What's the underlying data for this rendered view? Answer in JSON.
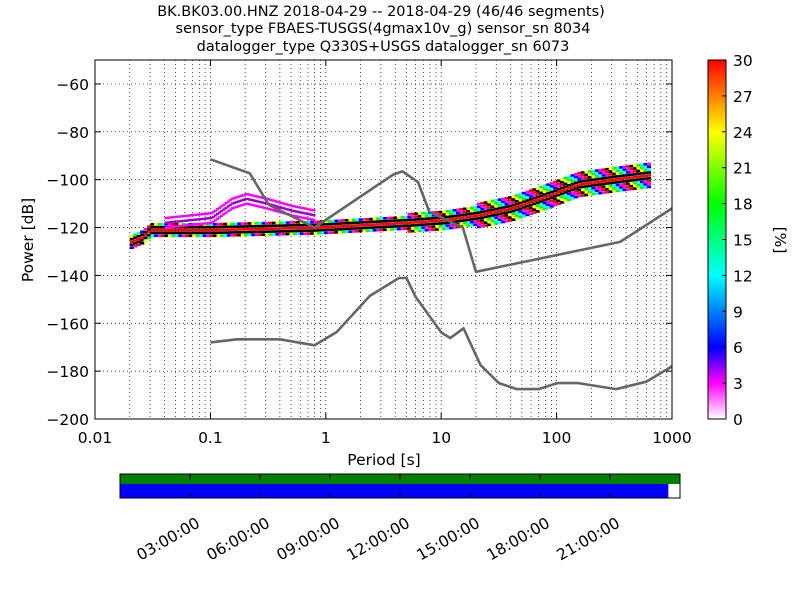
{
  "title_lines": [
    "BK.BK03.00.HNZ   2018-04-29 -- 2018-04-29  (46/46 segments)",
    "sensor_type FBAES-TUSGS(4gmax10v_g) sensor_sn 8034",
    "datalogger_type Q330S+USGS datalogger_sn 6073"
  ],
  "chart_data": {
    "type": "heatmap",
    "title": "BK.BK03.00.HNZ   2018-04-29 -- 2018-04-29  (46/46 segments)",
    "xlabel": "Period [s]",
    "ylabel": "Power [dB]",
    "xscale": "log",
    "xlim": [
      0.01,
      1000
    ],
    "ylim": [
      -200,
      -50
    ],
    "xticks": [
      0.01,
      0.1,
      1,
      10,
      100,
      1000
    ],
    "xtick_labels": [
      "0.01",
      "0.1",
      "1",
      "10",
      "100",
      "1000"
    ],
    "yticks": [
      -60,
      -80,
      -100,
      -120,
      -140,
      -160,
      -180,
      -200
    ],
    "ytick_labels": [
      "−60",
      "−80",
      "−100",
      "−120",
      "−140",
      "−160",
      "−180",
      "−200"
    ],
    "grid": true,
    "colorbar": {
      "label": "[%]",
      "range": [
        0,
        30
      ],
      "ticks": [
        0,
        3,
        6,
        9,
        12,
        15,
        18,
        21,
        24,
        27,
        30
      ],
      "tick_labels": [
        "0",
        "3",
        "6",
        "9",
        "12",
        "15",
        "18",
        "21",
        "24",
        "27",
        "30"
      ],
      "colors": [
        "#ffffff",
        "#ff00ff",
        "#0000ff",
        "#00ffff",
        "#00ff00",
        "#ffff00",
        "#ff0000"
      ]
    },
    "noise_models": [
      {
        "name": "NHNM",
        "color": "#666666",
        "points": [
          [
            0.1,
            -91.5
          ],
          [
            0.22,
            -97.4
          ],
          [
            0.32,
            -110.5
          ],
          [
            0.8,
            -120
          ],
          [
            3.8,
            -98
          ],
          [
            4.6,
            -96.5
          ],
          [
            6.3,
            -101
          ],
          [
            7.9,
            -113.5
          ],
          [
            15.4,
            -120
          ],
          [
            20,
            -138.5
          ],
          [
            354.8,
            -126
          ],
          [
            1000,
            -112
          ]
        ]
      },
      {
        "name": "NLNM",
        "color": "#666666",
        "points": [
          [
            0.1,
            -168
          ],
          [
            0.17,
            -166.7
          ],
          [
            0.4,
            -166.7
          ],
          [
            0.8,
            -169.2
          ],
          [
            1.24,
            -163.7
          ],
          [
            2.4,
            -148.6
          ],
          [
            4.3,
            -141.1
          ],
          [
            5,
            -141.1
          ],
          [
            6,
            -149
          ],
          [
            10,
            -163.8
          ],
          [
            12,
            -166.2
          ],
          [
            15.6,
            -162.1
          ],
          [
            21.9,
            -177.5
          ],
          [
            31.6,
            -185
          ],
          [
            45,
            -187.5
          ],
          [
            70,
            -187.5
          ],
          [
            101,
            -185
          ],
          [
            154,
            -185
          ],
          [
            328,
            -187.5
          ],
          [
            600,
            -184.4
          ],
          [
            1000,
            -178
          ]
        ]
      }
    ],
    "psd_modes": [
      {
        "name": "dominant",
        "color_note": "red/black ridge (~30%)",
        "points": [
          [
            0.02,
            -126
          ],
          [
            0.025,
            -124
          ],
          [
            0.03,
            -121
          ],
          [
            0.05,
            -121
          ],
          [
            0.1,
            -121
          ],
          [
            0.3,
            -120.5
          ],
          [
            0.8,
            -120
          ],
          [
            2,
            -119
          ],
          [
            5,
            -118
          ],
          [
            10,
            -117
          ],
          [
            20,
            -115
          ],
          [
            40,
            -112
          ],
          [
            80,
            -107
          ],
          [
            150,
            -102
          ],
          [
            300,
            -100
          ],
          [
            650,
            -98
          ]
        ]
      },
      {
        "name": "secondary_hump",
        "color_note": "magenta/purple (~3%)",
        "points": [
          [
            0.04,
            -120
          ],
          [
            0.1,
            -118
          ],
          [
            0.15,
            -112
          ],
          [
            0.2,
            -110
          ],
          [
            0.3,
            -112
          ],
          [
            0.5,
            -115
          ],
          [
            0.8,
            -117
          ]
        ]
      }
    ]
  },
  "timeline": {
    "ticks": [
      "03:00:00",
      "06:00:00",
      "09:00:00",
      "12:00:00",
      "15:00:00",
      "18:00:00",
      "21:00:00"
    ],
    "tick_hours": [
      3,
      6,
      9,
      12,
      15,
      18,
      21
    ],
    "range_hours": [
      0,
      24
    ],
    "data_coverage": [
      0,
      23.5
    ],
    "colors": {
      "top_bar": "#008000",
      "bottom_bar": "#0000ff"
    }
  }
}
